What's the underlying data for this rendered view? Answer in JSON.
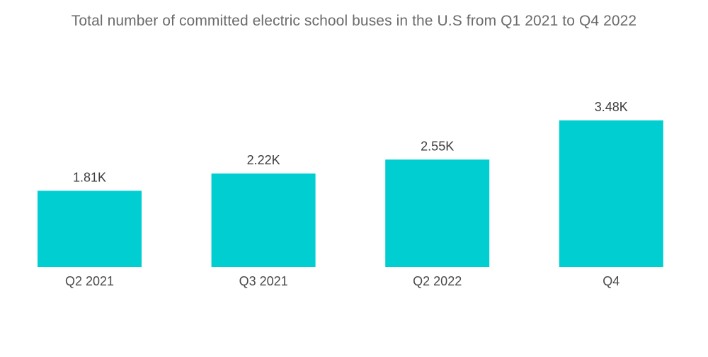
{
  "chart_data": {
    "type": "bar",
    "title": "Total number of committed electric school buses in the U.S from Q1 2021 to Q4 2022",
    "categories": [
      "Q2 2021",
      "Q3 2021",
      "Q2 2022",
      "Q4"
    ],
    "values": [
      1810,
      2220,
      2550,
      3480
    ],
    "value_labels": [
      "1.81K",
      "2.22K",
      "2.55K",
      "3.48K"
    ],
    "xlabel": "",
    "ylabel": "",
    "ylim": [
      0,
      3480
    ],
    "grid": false,
    "legend": "none",
    "bar_color": "#00CED1"
  }
}
